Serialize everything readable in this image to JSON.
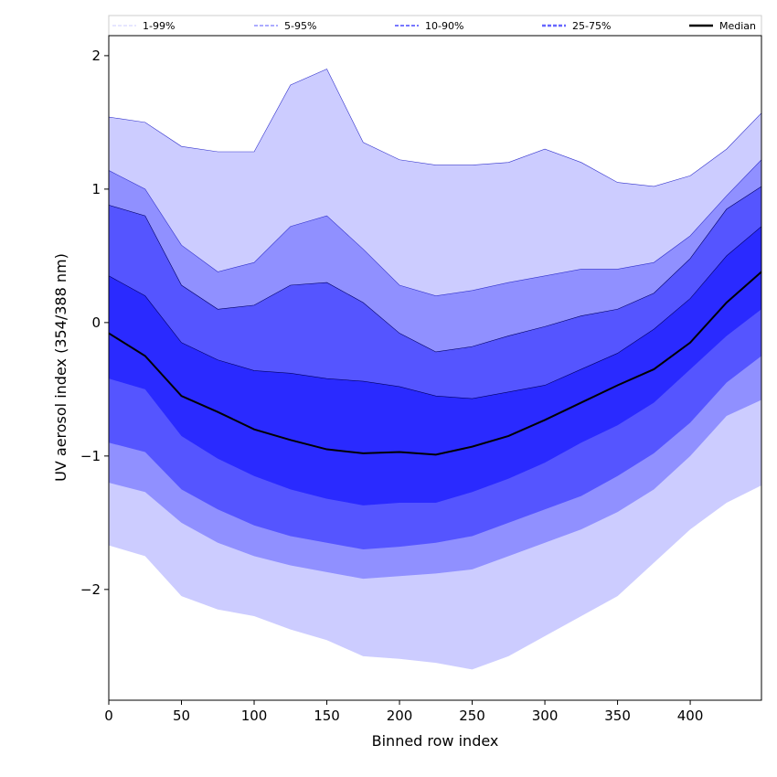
{
  "chart_data": {
    "type": "area",
    "title": "",
    "xlabel": "Binned row index",
    "ylabel": "UV aerosol index (354/388 nm)",
    "xlim": [
      0,
      449
    ],
    "ylim": [
      -2.83,
      2.15
    ],
    "xticks": [
      0,
      50,
      100,
      150,
      200,
      250,
      300,
      350,
      400
    ],
    "yticks": [
      -2,
      -1,
      0,
      1,
      2
    ],
    "ytick_labels": [
      "−2",
      "−1",
      "0",
      "1",
      "2"
    ],
    "legend_placement": "top, above plot",
    "x": [
      0,
      25,
      50,
      75,
      100,
      125,
      150,
      175,
      200,
      225,
      250,
      275,
      300,
      325,
      350,
      375,
      400,
      425,
      449
    ],
    "bands": [
      {
        "name": "1-99%",
        "color": "#ccccff",
        "line": "#ccccff",
        "upper": [
          1.54,
          1.5,
          1.32,
          1.28,
          1.28,
          1.78,
          1.9,
          1.35,
          1.22,
          1.18,
          1.18,
          1.2,
          1.3,
          1.2,
          1.05,
          1.02,
          1.1,
          1.3,
          1.57
        ],
        "lower": [
          -1.67,
          -1.75,
          -2.05,
          -2.15,
          -2.2,
          -2.3,
          -2.38,
          -2.5,
          -2.52,
          -2.55,
          -2.6,
          -2.5,
          -2.35,
          -2.2,
          -2.05,
          -1.8,
          -1.55,
          -1.35,
          -1.22
        ]
      },
      {
        "name": "5-95%",
        "color": "#9090ff",
        "line": "#9090ff",
        "upper": [
          1.14,
          1.0,
          0.58,
          0.38,
          0.45,
          0.72,
          0.8,
          0.55,
          0.28,
          0.2,
          0.24,
          0.3,
          0.35,
          0.4,
          0.4,
          0.45,
          0.65,
          0.95,
          1.22
        ],
        "lower": [
          -1.2,
          -1.27,
          -1.5,
          -1.65,
          -1.75,
          -1.82,
          -1.87,
          -1.92,
          -1.9,
          -1.88,
          -1.85,
          -1.75,
          -1.65,
          -1.55,
          -1.42,
          -1.25,
          -1.0,
          -0.7,
          -0.58
        ]
      },
      {
        "name": "10-90%",
        "color": "#5555ff",
        "line": "#7777ff",
        "upper": [
          0.88,
          0.8,
          0.28,
          0.1,
          0.13,
          0.28,
          0.3,
          0.15,
          -0.08,
          -0.22,
          -0.18,
          -0.1,
          -0.03,
          0.05,
          0.1,
          0.22,
          0.48,
          0.85,
          1.02
        ],
        "lower": [
          -0.9,
          -0.97,
          -1.25,
          -1.4,
          -1.52,
          -1.6,
          -1.65,
          -1.7,
          -1.68,
          -1.65,
          -1.6,
          -1.5,
          -1.4,
          -1.3,
          -1.15,
          -0.98,
          -0.75,
          -0.45,
          -0.25
        ]
      },
      {
        "name": "25-75%",
        "color": "#2a2aff",
        "line": "#6666ff",
        "upper": [
          0.35,
          0.2,
          -0.15,
          -0.28,
          -0.36,
          -0.38,
          -0.42,
          -0.44,
          -0.48,
          -0.55,
          -0.57,
          -0.52,
          -0.47,
          -0.35,
          -0.23,
          -0.05,
          0.18,
          0.5,
          0.72
        ],
        "lower": [
          -0.42,
          -0.5,
          -0.85,
          -1.02,
          -1.15,
          -1.25,
          -1.32,
          -1.37,
          -1.35,
          -1.35,
          -1.27,
          -1.17,
          -1.05,
          -0.9,
          -0.77,
          -0.6,
          -0.35,
          -0.1,
          0.1
        ]
      }
    ],
    "median": {
      "name": "Median",
      "color": "#000000",
      "values": [
        -0.08,
        -0.25,
        -0.55,
        -0.67,
        -0.8,
        -0.88,
        -0.95,
        -0.98,
        -0.97,
        -0.99,
        -0.93,
        -0.85,
        -0.73,
        -0.6,
        -0.47,
        -0.35,
        -0.15,
        0.15,
        0.38
      ]
    }
  }
}
